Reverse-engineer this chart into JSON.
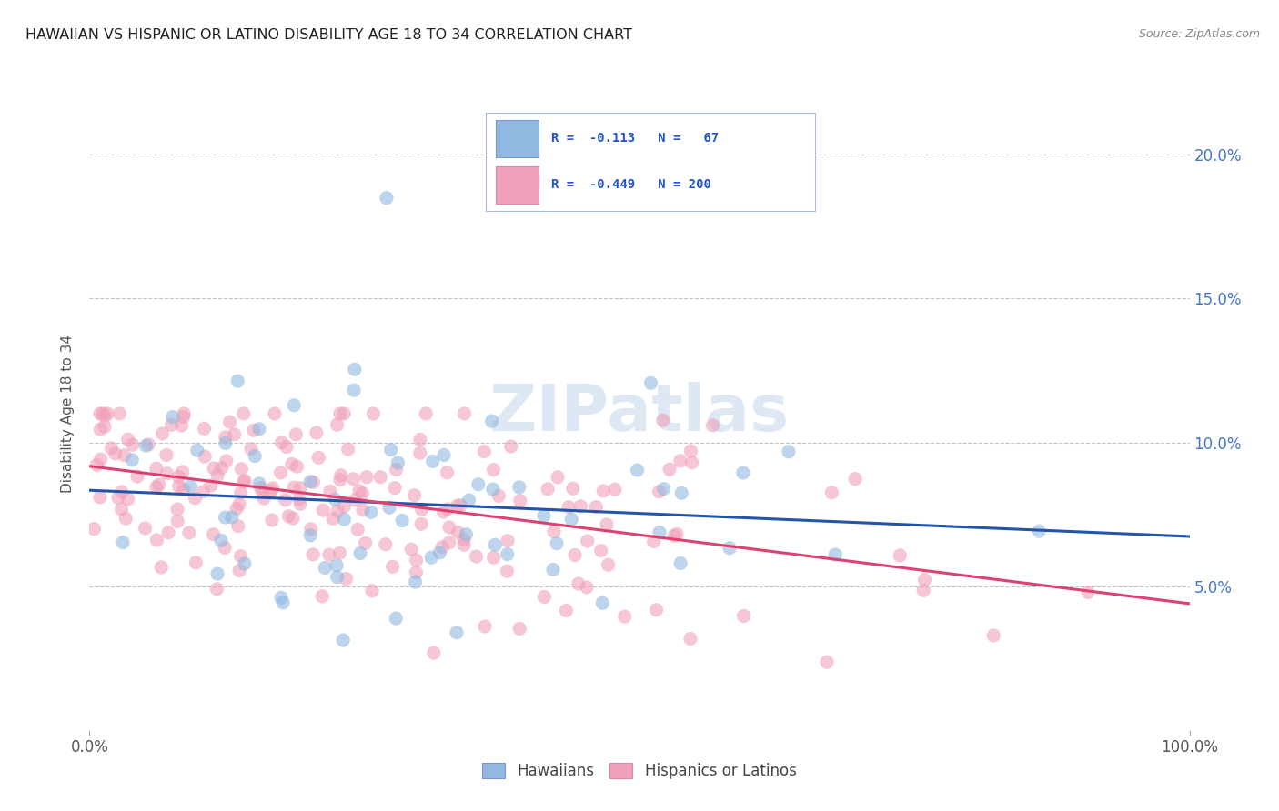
{
  "title": "HAWAIIAN VS HISPANIC OR LATINO DISABILITY AGE 18 TO 34 CORRELATION CHART",
  "source": "Source: ZipAtlas.com",
  "ylabel": "Disability Age 18 to 34",
  "y_ticks": [
    0.05,
    0.1,
    0.15,
    0.2
  ],
  "y_tick_labels": [
    "5.0%",
    "10.0%",
    "15.0%",
    "20.0%"
  ],
  "xlim": [
    0.0,
    1.0
  ],
  "ylim": [
    0.0,
    0.22
  ],
  "hawaiian_color": "#90b8e0",
  "hispanic_color": "#f0a0b8",
  "hawaiian_line_color": "#2255aa",
  "hispanic_line_color": "#e04070",
  "background_color": "#ffffff",
  "grid_color": "#bbbbcc",
  "title_color": "#222222",
  "source_color": "#888888",
  "axis_label_color": "#555555",
  "tick_label_color": "#4477cc",
  "legend_text_color": "#2255cc",
  "watermark_color": "#d0dff0",
  "scatter_size": 120,
  "scatter_alpha": 0.6,
  "line_width": 2.2
}
